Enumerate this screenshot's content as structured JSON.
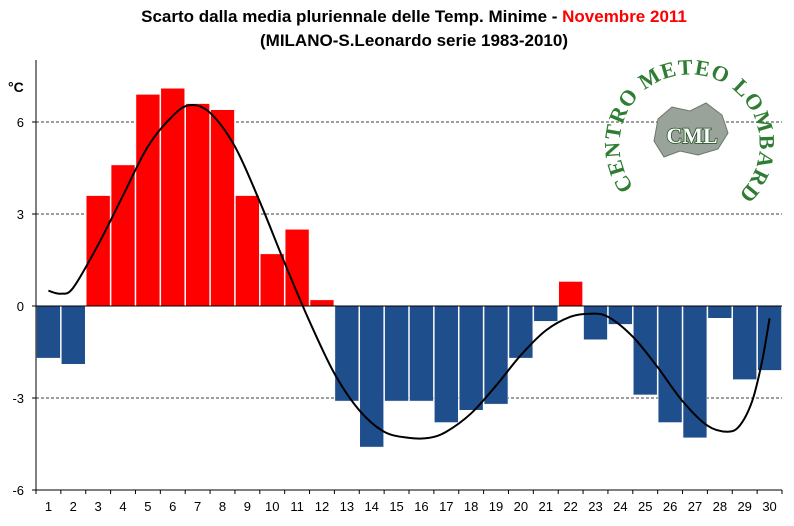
{
  "chart_data": {
    "type": "bar",
    "title": {
      "main": "Scarto dalla media pluriennale delle Temp. Minime - ",
      "highlight": "Novembre 2011",
      "highlight_color": "#ff0000",
      "subtitle": "(MILANO-S.Leonardo serie 1983-2010)"
    },
    "y_unit": "°C",
    "ylim": [
      -6,
      7
    ],
    "yticks": [
      -6,
      -3,
      0,
      3,
      6
    ],
    "grid": "horizontal dashed",
    "categories": [
      "1",
      "2",
      "3",
      "4",
      "5",
      "6",
      "7",
      "8",
      "9",
      "10",
      "11",
      "12",
      "13",
      "14",
      "15",
      "16",
      "17",
      "18",
      "19",
      "20",
      "21",
      "22",
      "23",
      "24",
      "25",
      "26",
      "27",
      "28",
      "29",
      "30"
    ],
    "values": [
      -1.7,
      -1.9,
      3.6,
      4.6,
      6.9,
      7.1,
      6.6,
      6.4,
      3.6,
      1.7,
      2.5,
      0.2,
      -3.1,
      -4.6,
      -3.1,
      -3.1,
      -3.8,
      -3.4,
      -3.2,
      -1.7,
      -0.5,
      0.8,
      -1.1,
      -0.6,
      -2.9,
      -3.8,
      -4.3,
      -0.4,
      -2.4,
      -2.1
    ],
    "positive_color": "#ff0000",
    "negative_color": "#1f4e8c",
    "trend_line_color": "#000000",
    "trend_line": [
      [
        1,
        0.5
      ],
      [
        1.5,
        0.4
      ],
      [
        2,
        0.6
      ],
      [
        3,
        2.0
      ],
      [
        4,
        3.6
      ],
      [
        5,
        5.2
      ],
      [
        6,
        6.2
      ],
      [
        6.7,
        6.55
      ],
      [
        7.5,
        6.3
      ],
      [
        8.5,
        5.2
      ],
      [
        9.5,
        3.4
      ],
      [
        10.5,
        1.4
      ],
      [
        11.5,
        -0.5
      ],
      [
        12.5,
        -2.2
      ],
      [
        13.5,
        -3.4
      ],
      [
        14.5,
        -4.1
      ],
      [
        15.5,
        -4.3
      ],
      [
        16.3,
        -4.3
      ],
      [
        17,
        -4.1
      ],
      [
        18,
        -3.5
      ],
      [
        19,
        -2.6
      ],
      [
        20,
        -1.6
      ],
      [
        21,
        -0.8
      ],
      [
        22,
        -0.35
      ],
      [
        22.8,
        -0.25
      ],
      [
        23.5,
        -0.35
      ],
      [
        24.5,
        -1.0
      ],
      [
        25.5,
        -2.0
      ],
      [
        26.5,
        -3.1
      ],
      [
        27.5,
        -3.9
      ],
      [
        28.3,
        -4.1
      ],
      [
        28.8,
        -3.9
      ],
      [
        29.3,
        -3.1
      ],
      [
        29.7,
        -1.8
      ],
      [
        30,
        -0.4
      ]
    ]
  },
  "logo": {
    "arc_text": "CENTRO METEO LOMBARDO",
    "center_text": "CML",
    "color": "#2e7d32"
  }
}
